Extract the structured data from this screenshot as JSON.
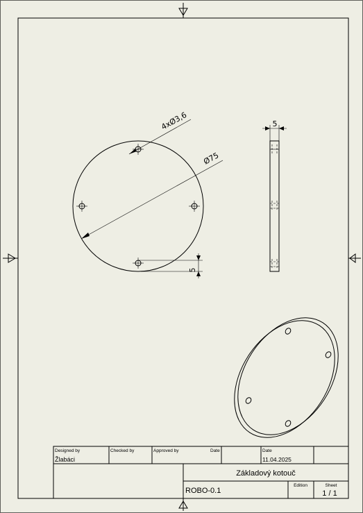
{
  "dimensions": {
    "hole_pattern": "4xØ3,6",
    "diameter": "Ø75",
    "thickness": "5",
    "hole_offset": "5"
  },
  "title_block": {
    "designed_by_label": "Designed by",
    "designed_by_value": "Žlabáci",
    "checked_by_label": "Checked by",
    "approved_by_label": "Approved by",
    "date_label_1": "Date",
    "date_label_2": "Date",
    "date_value": "11.04.2025",
    "title": "Základový kotouč",
    "drawing_number": "ROBO-0.1",
    "edition_label": "Edition",
    "sheet_label": "Sheet",
    "sheet_value": "1 / 1"
  }
}
